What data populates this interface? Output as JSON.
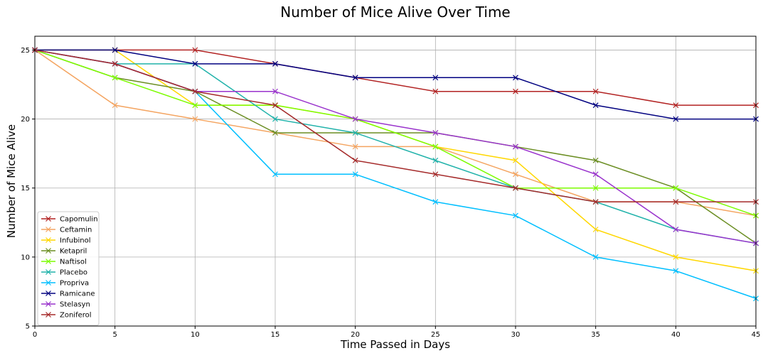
{
  "chart_data": {
    "type": "line",
    "title": "Number of Mice Alive Over Time",
    "xlabel": "Time Passed in Days",
    "ylabel": "Number of Mice Alive",
    "x": [
      0,
      5,
      10,
      15,
      20,
      25,
      30,
      35,
      40,
      45
    ],
    "xlim": [
      0,
      45
    ],
    "ylim": [
      5,
      26
    ],
    "xticks": [
      0,
      5,
      10,
      15,
      20,
      25,
      30,
      35,
      40,
      45
    ],
    "yticks": [
      5,
      10,
      15,
      20,
      25
    ],
    "grid": true,
    "legend_position": "lower-left",
    "marker": "x",
    "series": [
      {
        "name": "Capomulin",
        "color": "#b22222",
        "values": [
          25,
          25,
          25,
          24,
          23,
          22,
          22,
          22,
          21,
          21
        ]
      },
      {
        "name": "Ceftamin",
        "color": "#f4a460",
        "values": [
          25,
          21,
          20,
          19,
          18,
          18,
          16,
          14,
          14,
          13
        ]
      },
      {
        "name": "Infubinol",
        "color": "#ffd700",
        "values": [
          25,
          25,
          21,
          21,
          20,
          18,
          17,
          12,
          10,
          9
        ]
      },
      {
        "name": "Ketapril",
        "color": "#6b8e23",
        "values": [
          25,
          23,
          22,
          19,
          19,
          19,
          18,
          17,
          15,
          11
        ]
      },
      {
        "name": "Naftisol",
        "color": "#7cfc00",
        "values": [
          25,
          23,
          21,
          21,
          20,
          18,
          15,
          15,
          15,
          13
        ]
      },
      {
        "name": "Placebo",
        "color": "#20b2aa",
        "values": [
          25,
          24,
          24,
          20,
          19,
          17,
          15,
          14,
          12,
          11
        ]
      },
      {
        "name": "Propriva",
        "color": "#00bfff",
        "values": [
          25,
          24,
          22,
          16,
          16,
          14,
          13,
          10,
          9,
          7
        ]
      },
      {
        "name": "Ramicane",
        "color": "#000080",
        "values": [
          25,
          25,
          24,
          24,
          23,
          23,
          23,
          21,
          20,
          20
        ]
      },
      {
        "name": "Stelasyn",
        "color": "#9932cc",
        "values": [
          25,
          24,
          22,
          22,
          20,
          19,
          18,
          16,
          12,
          11
        ]
      },
      {
        "name": "Zoniferol",
        "color": "#a52a2a",
        "values": [
          25,
          24,
          22,
          21,
          17,
          16,
          15,
          14,
          14,
          14
        ]
      }
    ]
  }
}
